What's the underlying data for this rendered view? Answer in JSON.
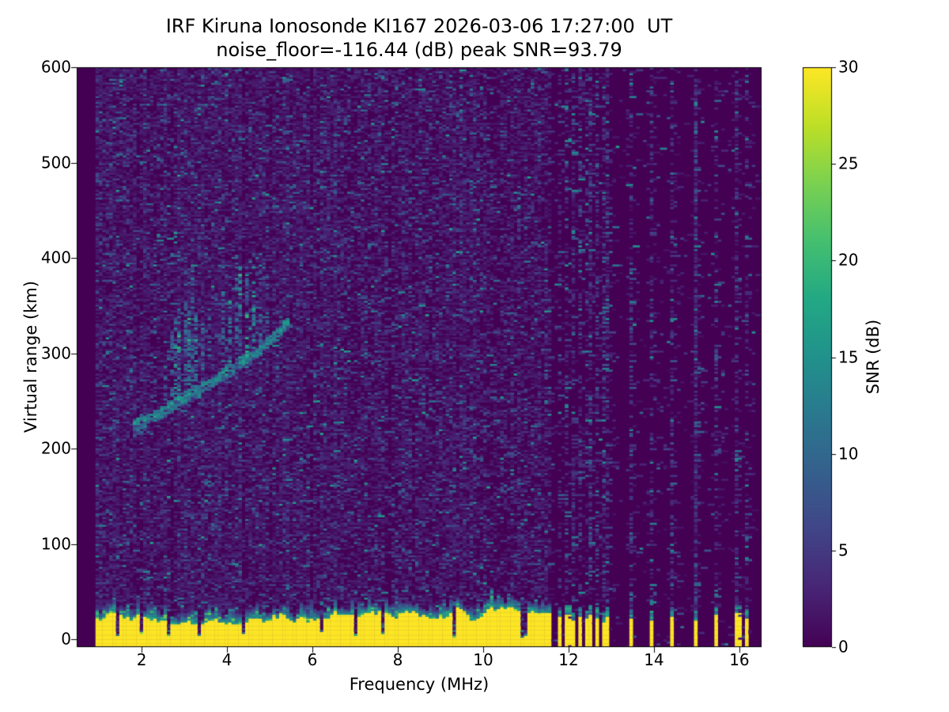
{
  "chart_data": {
    "type": "heatmap",
    "title": "IRF Kiruna Ionosonde KI167 2026-03-06 17:27:00  UT",
    "subtitle": "noise_floor=-116.44 (dB) peak SNR=93.79",
    "xlabel": "Frequency (MHz)",
    "ylabel": "Virtual range (km)",
    "colorbar_label": "SNR (dB)",
    "colormap": "viridis",
    "colormap_stops": [
      [
        0.0,
        "#440154"
      ],
      [
        0.1,
        "#482475"
      ],
      [
        0.2,
        "#414487"
      ],
      [
        0.3,
        "#355f8d"
      ],
      [
        0.4,
        "#2a788e"
      ],
      [
        0.5,
        "#21918c"
      ],
      [
        0.6,
        "#22a884"
      ],
      [
        0.7,
        "#44bf70"
      ],
      [
        0.8,
        "#7ad151"
      ],
      [
        0.9,
        "#bddf26"
      ],
      [
        1.0,
        "#fde725"
      ]
    ],
    "xlim": [
      0.48,
      16.52
    ],
    "ylim": [
      -8,
      600
    ],
    "clim": [
      0,
      30
    ],
    "x_ticks": [
      2,
      4,
      6,
      8,
      10,
      12,
      14,
      16
    ],
    "y_ticks": [
      0,
      100,
      200,
      300,
      400,
      500,
      600
    ],
    "colorbar_ticks": [
      0,
      5,
      10,
      15,
      20,
      25,
      30
    ],
    "noise_floor_db": -116.44,
    "peak_snr_db": 93.79,
    "features": {
      "sweep_freq_range_mhz": [
        0.92,
        16.45
      ],
      "ground_echo": {
        "freq_range_mhz": [
          0.92,
          11.58
        ],
        "top_km_min": 16,
        "top_km_max": 34,
        "snr_db": 30,
        "gap_freqs_mhz": [
          1.45,
          2.02,
          2.6,
          3.35,
          4.37,
          6.25,
          7.02,
          7.65,
          9.3,
          10.95
        ]
      },
      "f_region_trace": {
        "points": [
          [
            1.82,
            224
          ],
          [
            2.2,
            232
          ],
          [
            2.6,
            243
          ],
          [
            3.0,
            254
          ],
          [
            3.4,
            264
          ],
          [
            3.8,
            275
          ],
          [
            4.2,
            286
          ],
          [
            4.6,
            298
          ],
          [
            4.95,
            311
          ],
          [
            5.25,
            323
          ],
          [
            5.48,
            335
          ]
        ],
        "snr_db_range": [
          6,
          20
        ]
      },
      "trace_foot": {
        "freq_range_mhz": [
          1.84,
          2.06
        ],
        "range_km": [
          214,
          228
        ]
      },
      "spread_striations": [
        [
          2.32,
          272,
          0.3,
          0
        ],
        [
          2.52,
          290,
          0.35,
          0
        ],
        [
          2.68,
          322,
          0.45,
          0
        ],
        [
          2.79,
          344,
          0.5,
          1
        ],
        [
          2.9,
          354,
          0.55,
          1
        ],
        [
          3.0,
          398,
          0.45,
          0
        ],
        [
          3.1,
          346,
          0.6,
          1
        ],
        [
          3.2,
          392,
          0.45,
          0
        ],
        [
          3.3,
          342,
          0.55,
          1
        ],
        [
          3.42,
          332,
          0.45,
          0
        ],
        [
          3.56,
          320,
          0.4,
          0
        ],
        [
          3.7,
          302,
          0.35,
          0
        ],
        [
          3.93,
          370,
          0.45,
          0
        ],
        [
          4.06,
          356,
          0.5,
          1
        ],
        [
          4.19,
          398,
          0.4,
          0
        ],
        [
          4.33,
          396,
          0.5,
          1
        ],
        [
          4.49,
          386,
          0.55,
          1
        ],
        [
          4.63,
          374,
          0.45,
          1
        ],
        [
          4.79,
          342,
          0.4,
          0
        ],
        [
          4.96,
          334,
          0.35,
          0
        ],
        [
          5.12,
          330,
          0.3,
          0
        ]
      ],
      "rfi_channels": [
        [
          11.76,
          24,
          1
        ],
        [
          11.95,
          27,
          2
        ],
        [
          12.12,
          20,
          1
        ],
        [
          12.26,
          25,
          1
        ],
        [
          12.4,
          22,
          1
        ],
        [
          12.53,
          27,
          1
        ],
        [
          12.66,
          23,
          1
        ],
        [
          12.79,
          19,
          1
        ],
        [
          12.93,
          25,
          1
        ],
        [
          13.49,
          23,
          1
        ],
        [
          13.95,
          21,
          1
        ],
        [
          14.45,
          25,
          1
        ],
        [
          14.95,
          21,
          1
        ],
        [
          15.44,
          26,
          1
        ],
        [
          15.92,
          28,
          2
        ],
        [
          16.16,
          23,
          1
        ]
      ],
      "background_noise": {
        "snr_db_typical": [
          0,
          6
        ],
        "density_left": 0.62,
        "density_mid": 0.56,
        "density_far": 0.5,
        "density_right_quiet": 0.025,
        "rfi_column_density": 0.33
      }
    }
  }
}
